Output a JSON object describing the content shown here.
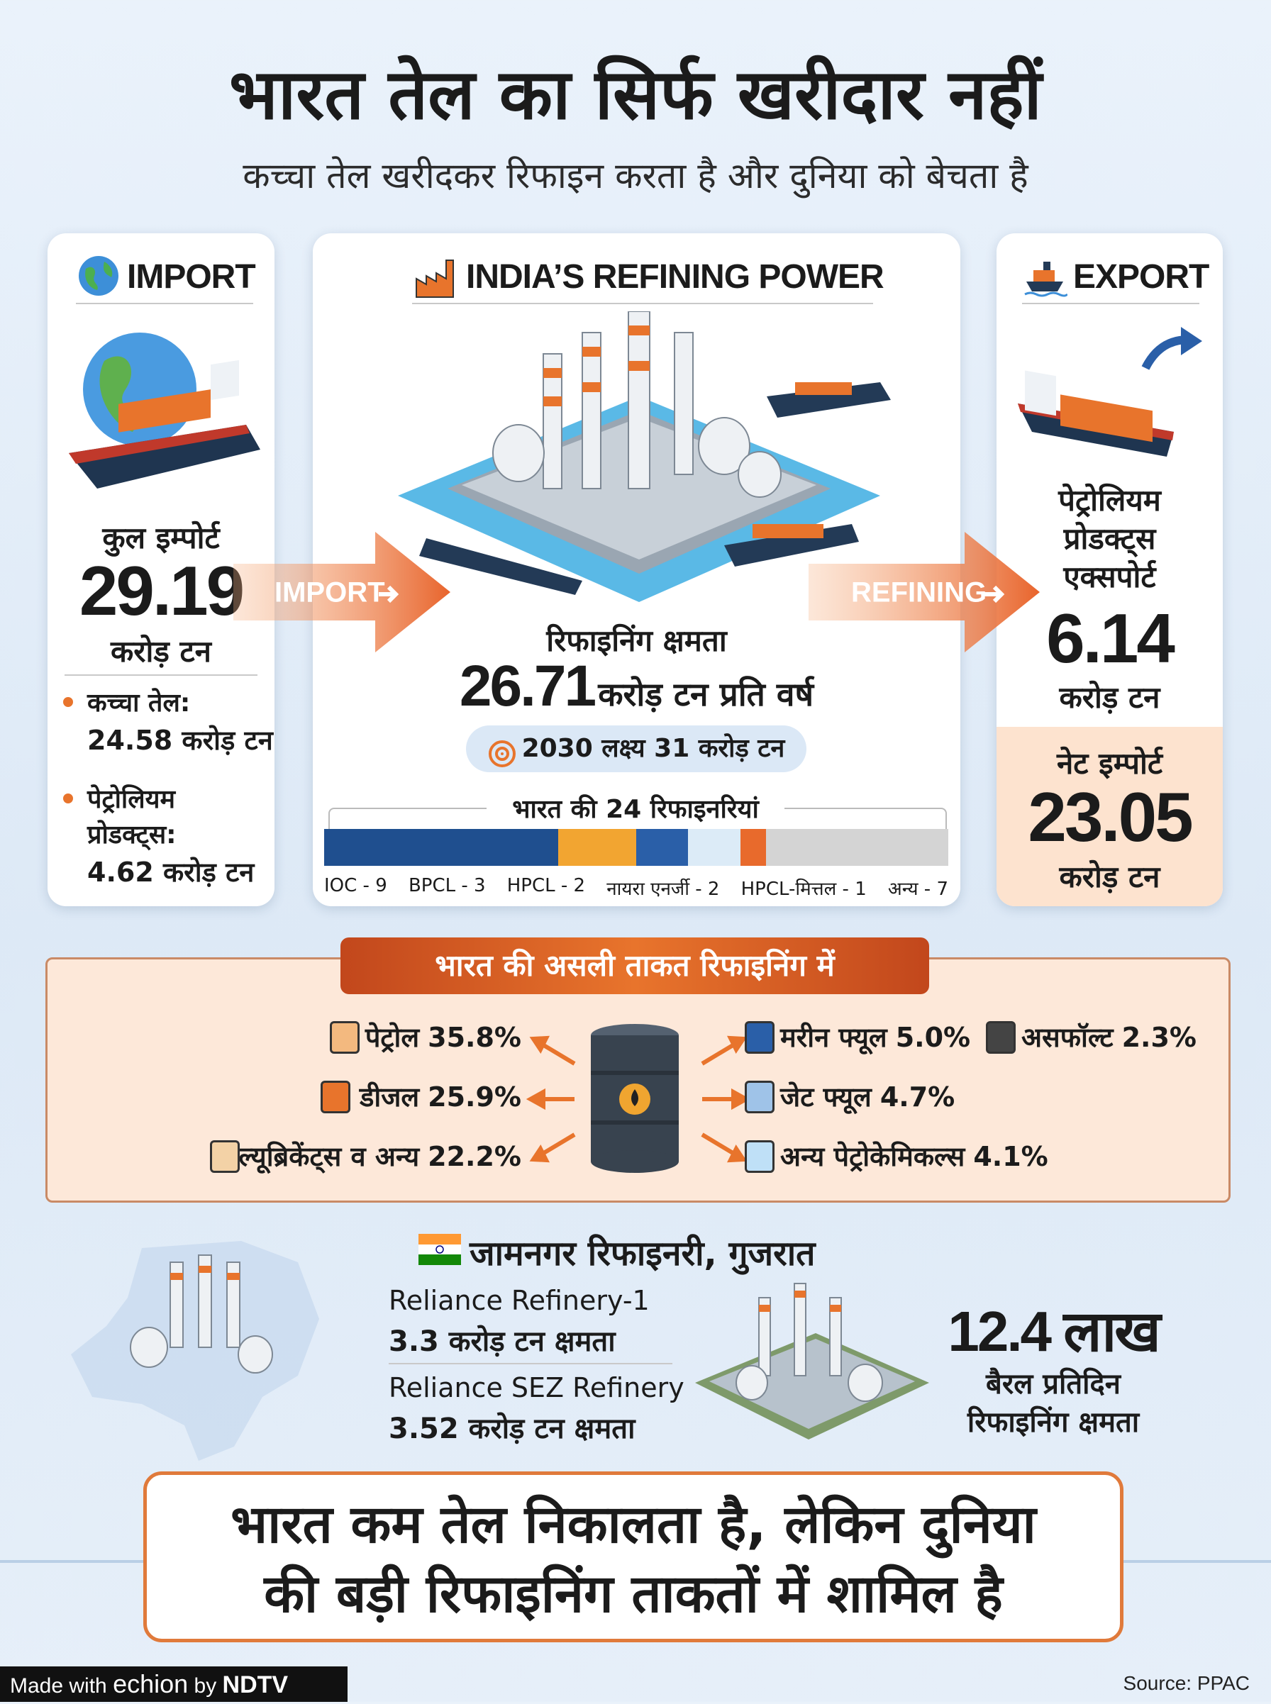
{
  "header": {
    "title": "भारत तेल का सिर्फ खरीदार नहीं",
    "subtitle": "कच्चा तेल खरीदकर रिफाइन करता है और दुनिया को बेचता है"
  },
  "import": {
    "heading": "IMPORT",
    "total_label": "कुल इम्पोर्ट",
    "total_value": "29.19",
    "total_unit": "करोड़ टन",
    "items": [
      {
        "label": "कच्चा तेल:",
        "value": "24.58 करोड़ टन"
      },
      {
        "label_lines": [
          "पेट्रोलियम",
          "प्रोडक्ट्स:"
        ],
        "value": "4.62 करोड़ टन"
      }
    ]
  },
  "arrows": {
    "import": "IMPORT",
    "refining": "REFINING"
  },
  "refining": {
    "heading": "INDIA’S REFINING POWER",
    "capacity_label": "रिफाइनिंग क्षमता",
    "capacity_value": "26.71",
    "capacity_unit": "करोड़ टन प्रति वर्ष",
    "target": "2030 लक्ष्य 31 करोड़ टन",
    "refineries_title": "भारत की 24 रिफाइनरियां",
    "refineries": {
      "values": [
        9,
        3,
        2,
        2,
        1,
        7
      ],
      "value_labels": [
        "IOC - 9",
        "BPCL - 3",
        "HPCL - 2",
        "नायरा एनर्जी - 2",
        "HPCL-मित्तल - 1",
        "अन्य - 7"
      ],
      "colors": [
        "#1f4f8f",
        "#f2a531",
        "#2a5fa8",
        "#dcebf7",
        "#e86a2c",
        "#d4d4d4"
      ]
    }
  },
  "export": {
    "heading": "EXPORT",
    "label_lines": [
      "पेट्रोलियम",
      "प्रोडक्ट्स",
      "एक्सपोर्ट"
    ],
    "value": "6.14",
    "unit": "करोड़ टन",
    "net_label": "नेट इम्पोर्ट",
    "net_value": "23.05",
    "net_unit": "करोड़ टन"
  },
  "distribution": {
    "title": "भारत की असली ताकत रिफाइनिंग में",
    "left": [
      {
        "name": "पेट्रोल",
        "share": "35.8%"
      },
      {
        "name": "डीजल",
        "share": "25.9%"
      },
      {
        "name": "ल्यूब्रिकेंट्स व अन्य",
        "share": "22.2%"
      }
    ],
    "right": [
      {
        "name": "मरीन फ्यूल",
        "share": "5.0%"
      },
      {
        "name": "जेट फ्यूल",
        "share": "4.7%"
      },
      {
        "name": "अन्य पेट्रोकेमिकल्स",
        "share": "4.1%"
      }
    ],
    "extra": {
      "name": "असफॉल्ट",
      "share": "2.3%"
    }
  },
  "jamnagar": {
    "title": "जामनगर रिफाइनरी, गुजरात",
    "refineries": [
      {
        "name": "Reliance Refinery-1",
        "capacity": "3.3 करोड़ टन क्षमता"
      },
      {
        "name": "Reliance SEZ Refinery",
        "capacity": "3.52 करोड़ टन क्षमता"
      }
    ],
    "total_value": "12.4 लाख",
    "total_lines": [
      "बैरल प्रतिदिन",
      "रिफाइनिंग क्षमता"
    ]
  },
  "callout": {
    "lines": [
      "भारत कम तेल निकालता है, लेकिन दुनिया",
      "की बड़ी रिफाइनिंग ताकतों में शामिल है"
    ]
  },
  "footer": {
    "made_with": "Made with",
    "brand": "echion",
    "by": "by",
    "partner": "NDTV",
    "source": "Source: PPAC"
  }
}
